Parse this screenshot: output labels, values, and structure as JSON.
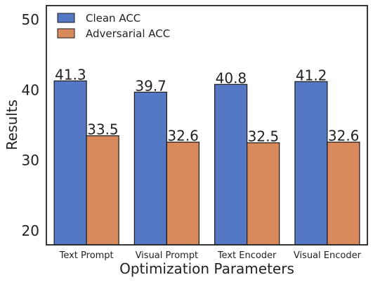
{
  "chart_data": {
    "type": "bar",
    "title": "",
    "xlabel": "Optimization Parameters",
    "ylabel": "Results",
    "ylim": [
      18,
      52
    ],
    "yticks": [
      20,
      30,
      40,
      50
    ],
    "grid": false,
    "legend_position": "top-left",
    "categories": [
      "Text Prompt",
      "Visual Prompt",
      "Text Encoder",
      "Visual Encoder"
    ],
    "series": [
      {
        "name": "Clean ACC",
        "color": "#5578c5",
        "values": [
          41.3,
          39.7,
          40.8,
          41.2
        ],
        "labels": [
          "41.3",
          "39.7",
          "40.8",
          "41.2"
        ]
      },
      {
        "name": "Adversarial ACC",
        "color": "#d88a5c",
        "values": [
          33.5,
          32.6,
          32.5,
          32.6
        ],
        "labels": [
          "33.5",
          "32.6",
          "32.5",
          "32.6"
        ]
      }
    ]
  }
}
